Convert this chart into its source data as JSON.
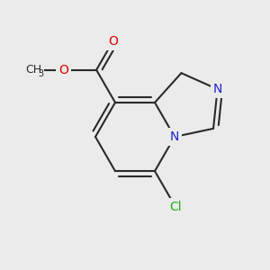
{
  "background_color": "#ebebeb",
  "bond_color": "#2a2a2a",
  "bond_lw": 1.5,
  "dbo": 0.018,
  "figsize": [
    3.0,
    3.0
  ],
  "dpi": 100,
  "atom_colors": {
    "O": "#dd0000",
    "N": "#2222cc",
    "Cl": "#22aa22",
    "C": "#2a2a2a"
  },
  "font_size": 10.0,
  "sub_font_size": 7.5
}
